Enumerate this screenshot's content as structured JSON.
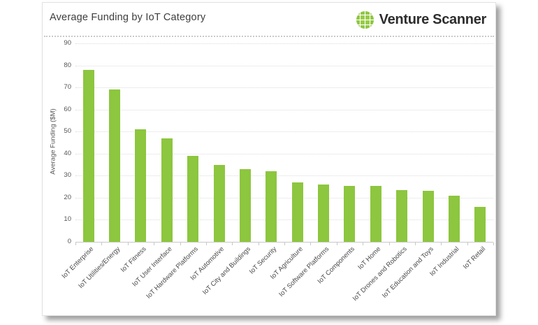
{
  "header": {
    "title": "Average Funding by IoT Category",
    "brand": "Venture Scanner",
    "logo_icon": "globe-grid-icon"
  },
  "colors": {
    "bar": "#8dc63f",
    "logo_green": "#8dc63f",
    "logo_olive": "#a2b43c",
    "title_text": "#3d3d3d",
    "axis_text": "#555555",
    "gridline": "#dcdcdc"
  },
  "chart_data": {
    "type": "bar",
    "title": "Average Funding by IoT Category",
    "xlabel": "",
    "ylabel": "Average Funding ($M)",
    "ylim": [
      0,
      90
    ],
    "ytick_step": 10,
    "grid": true,
    "legend": "none",
    "bar_color": "#8dc63f",
    "categories": [
      "IoT Enterprise",
      "IoT Utilities/Energy",
      "IoT Fitness",
      "IoT User Interface",
      "IoT Hardware Platforms",
      "IoT Automotive",
      "IoT City and Buildings",
      "IoT Security",
      "IoT Agriculture",
      "IoT Software Platforms",
      "IoT Components",
      "IoT Home",
      "IoT Drones and Robotics",
      "IoT Education and Toys",
      "IoT Industrial",
      "IoT Retail"
    ],
    "values": [
      78,
      69,
      51,
      47,
      39,
      35,
      33,
      32,
      27,
      26,
      25.5,
      25.5,
      23.5,
      23,
      21,
      16
    ]
  }
}
